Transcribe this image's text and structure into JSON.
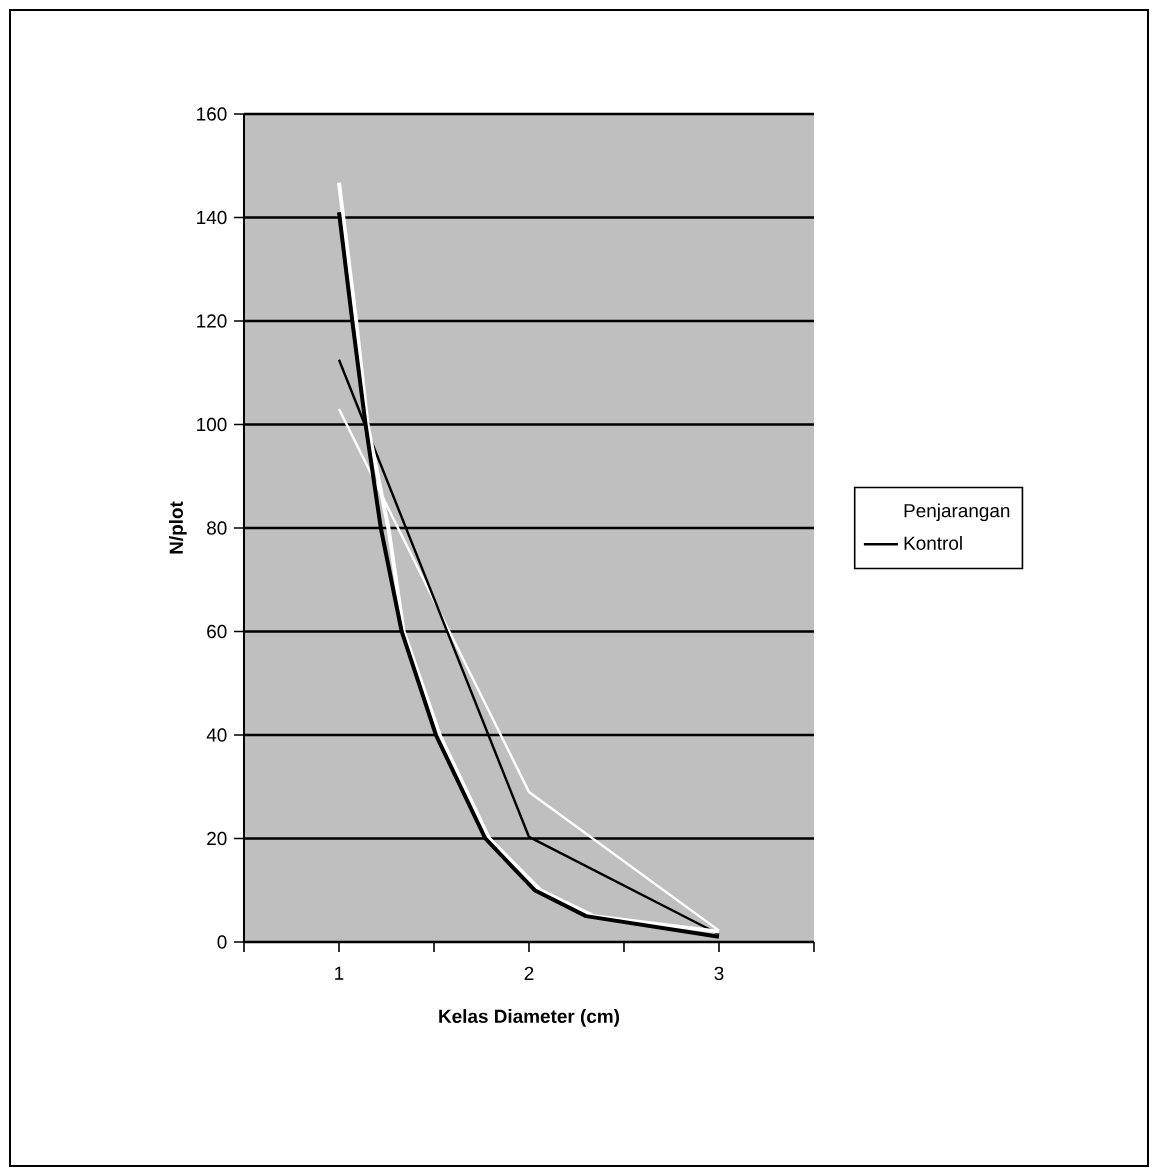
{
  "chart_data": {
    "type": "line",
    "xlabel": "Kelas Diameter (cm)",
    "ylabel": "N/plot",
    "x": [
      1,
      2,
      3
    ],
    "xlim": [
      0.5,
      3.5
    ],
    "xticks": [
      {
        "value": 0.5,
        "label": null
      },
      1,
      {
        "value": 1.5,
        "label": null
      },
      2,
      {
        "value": 2.5,
        "label": null
      },
      3,
      {
        "value": 3.5,
        "label": null
      }
    ],
    "ylim": [
      0,
      160
    ],
    "yticks": [
      0,
      20,
      40,
      60,
      80,
      100,
      120,
      140,
      160
    ],
    "grid": "y",
    "legend": "right",
    "series": [
      {
        "name": "Penjarangan",
        "color": "#ffffff",
        "values": [
          103,
          29,
          2.2
        ]
      },
      {
        "name": "Kontrol",
        "color": "#000000",
        "values": [
          112.5,
          20.3,
          1.5
        ]
      },
      {
        "color": "#ffffff",
        "x": [
          1,
          1.09,
          1.15,
          1.26,
          1.34,
          1.53,
          1.79,
          2.06,
          2.34,
          3
        ],
        "values": [
          146.7,
          120,
          100,
          80,
          60,
          40,
          20,
          10,
          5,
          2
        ]
      },
      {
        "color": "#000000",
        "x": [
          1,
          1.07,
          1.14,
          1.22,
          1.33,
          1.51,
          1.77,
          2.03,
          2.3,
          3
        ],
        "values": [
          141,
          120,
          100,
          80,
          60,
          40,
          20,
          10,
          5,
          1
        ]
      }
    ]
  }
}
